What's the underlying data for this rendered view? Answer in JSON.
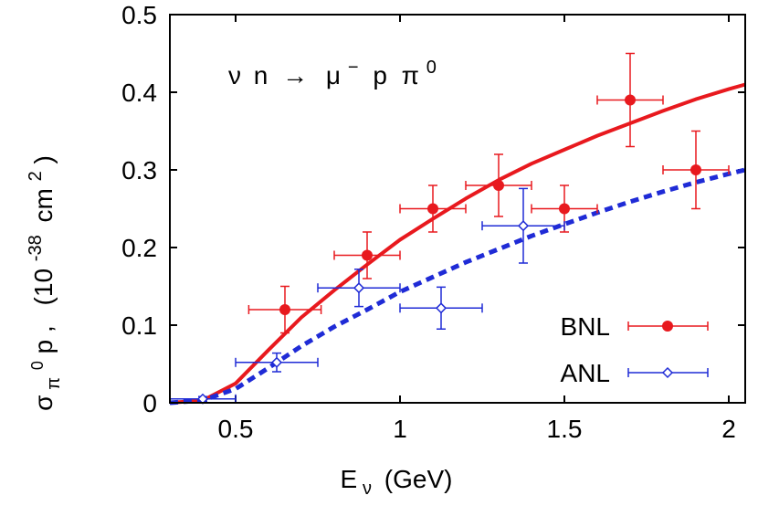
{
  "chart_data": {
    "type": "scatter",
    "annotation": {
      "nu": "ν",
      "n": "n",
      "arrow": "→",
      "mu": "μ",
      "minus": "−",
      "p": "p",
      "pi": "π",
      "zero": "0"
    },
    "xlabel": {
      "E": "E",
      "sub": "ν",
      "unit": "(GeV)"
    },
    "ylabel": {
      "sigma": "σ",
      "sub_pi": "π",
      "sup_zero": "0",
      "sub_p": "p",
      "comma": ",",
      "open": "(10",
      "exp": "-38",
      "unit": "cm",
      "sq": "2",
      "close": ")"
    },
    "xlim": [
      0.3,
      2.05
    ],
    "ylim": [
      0,
      0.5
    ],
    "x_ticks": [
      {
        "value": 0.5,
        "label": "0.5"
      },
      {
        "value": 1,
        "label": "1"
      },
      {
        "value": 1.5,
        "label": "1.5"
      },
      {
        "value": 2,
        "label": "2"
      }
    ],
    "y_ticks": [
      {
        "value": 0,
        "label": "0"
      },
      {
        "value": 0.1,
        "label": "0.1"
      },
      {
        "value": 0.2,
        "label": "0.2"
      },
      {
        "value": 0.3,
        "label": "0.3"
      },
      {
        "value": 0.4,
        "label": "0.4"
      },
      {
        "value": 0.5,
        "label": "0.5"
      }
    ],
    "legend_position": "bottom-right",
    "series": [
      {
        "name": "BNL",
        "kind": "points",
        "marker": "filled-circle",
        "color": "#e8191e",
        "points": [
          {
            "x": 0.65,
            "y": 0.12,
            "xerr": 0.11,
            "yerr": 0.03
          },
          {
            "x": 0.9,
            "y": 0.19,
            "xerr": 0.1,
            "yerr": 0.03
          },
          {
            "x": 1.1,
            "y": 0.25,
            "xerr": 0.1,
            "yerr": 0.03
          },
          {
            "x": 1.3,
            "y": 0.28,
            "xerr": 0.1,
            "yerr": 0.04
          },
          {
            "x": 1.5,
            "y": 0.25,
            "xerr": 0.1,
            "yerr": 0.03
          },
          {
            "x": 1.7,
            "y": 0.39,
            "xerr": 0.1,
            "yerr": 0.06
          },
          {
            "x": 1.9,
            "y": 0.3,
            "xerr": 0.1,
            "yerr": 0.05
          }
        ]
      },
      {
        "name": "ANL",
        "kind": "points",
        "marker": "open-diamond",
        "color": "#1f2bd6",
        "points": [
          {
            "x": 0.4,
            "y": 0.005,
            "xerr": 0.1,
            "yerr": 0.003
          },
          {
            "x": 0.625,
            "y": 0.052,
            "xerr": 0.125,
            "yerr": 0.012
          },
          {
            "x": 0.875,
            "y": 0.148,
            "xerr": 0.125,
            "yerr": 0.024
          },
          {
            "x": 1.125,
            "y": 0.122,
            "xerr": 0.125,
            "yerr": 0.027
          },
          {
            "x": 1.375,
            "y": 0.228,
            "xerr": 0.125,
            "yerr": 0.048
          }
        ]
      },
      {
        "kind": "line",
        "style": "solid",
        "color": "#e8191e",
        "x": [
          0.3,
          0.4,
          0.5,
          0.6,
          0.7,
          0.8,
          0.9,
          1.0,
          1.1,
          1.2,
          1.3,
          1.4,
          1.5,
          1.6,
          1.7,
          1.8,
          1.9,
          2.0,
          2.05
        ],
        "y": [
          0.0,
          0.003,
          0.025,
          0.068,
          0.11,
          0.145,
          0.178,
          0.21,
          0.237,
          0.263,
          0.287,
          0.308,
          0.326,
          0.344,
          0.36,
          0.376,
          0.391,
          0.404,
          0.41
        ]
      },
      {
        "kind": "line",
        "style": "dashed",
        "color": "#1f2bd6",
        "x": [
          0.3,
          0.4,
          0.5,
          0.6,
          0.7,
          0.8,
          0.9,
          1.0,
          1.1,
          1.2,
          1.3,
          1.4,
          1.5,
          1.6,
          1.7,
          1.8,
          1.9,
          2.0,
          2.05
        ],
        "y": [
          0.0,
          0.003,
          0.018,
          0.045,
          0.073,
          0.098,
          0.12,
          0.143,
          0.162,
          0.181,
          0.198,
          0.215,
          0.23,
          0.245,
          0.259,
          0.272,
          0.284,
          0.295,
          0.3
        ]
      }
    ]
  }
}
